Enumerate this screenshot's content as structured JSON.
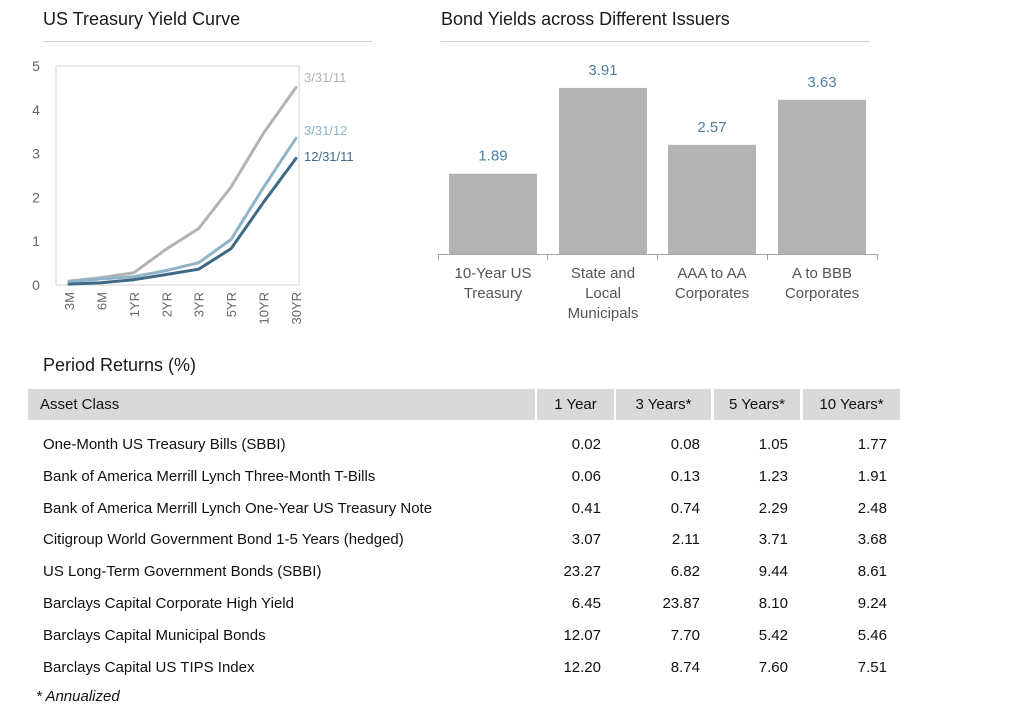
{
  "yield_curve": {
    "title": "US Treasury Yield Curve",
    "colors": {
      "3/31/11": "#b3b3b3",
      "3/31/12": "#8fb4c9",
      "12/31/11": "#3f6a85"
    }
  },
  "bond_yields": {
    "title": "Bond Yields across Different Issuers",
    "bar_color": "#b3b3b3",
    "label_color": "#4f7fa0"
  },
  "chart_data": [
    {
      "type": "line",
      "title": "US Treasury Yield Curve",
      "xlabel": "",
      "ylabel": "",
      "x": [
        "3M",
        "6M",
        "1YR",
        "2YR",
        "3YR",
        "5YR",
        "10YR",
        "30YR"
      ],
      "ylim": [
        0,
        5
      ],
      "yticks": [
        "0",
        "1",
        "2",
        "3",
        "4",
        "5"
      ],
      "grid": false,
      "series": [
        {
          "name": "3/31/11",
          "values": [
            0.09,
            0.17,
            0.28,
            0.82,
            1.29,
            2.24,
            3.47,
            4.51
          ]
        },
        {
          "name": "3/31/12",
          "values": [
            0.08,
            0.14,
            0.19,
            0.33,
            0.51,
            1.04,
            2.23,
            3.35
          ]
        },
        {
          "name": "12/31/11",
          "values": [
            0.02,
            0.05,
            0.12,
            0.24,
            0.36,
            0.83,
            1.89,
            2.89
          ]
        }
      ]
    },
    {
      "type": "bar",
      "title": "Bond Yields across Different Issuers",
      "xlabel": "",
      "ylabel": "",
      "categories": [
        [
          "10-Year US",
          "Treasury"
        ],
        [
          "State and",
          "Local",
          "Municipals"
        ],
        [
          "AAA to AA",
          "Corporates"
        ],
        [
          "A to BBB",
          "Corporates"
        ]
      ],
      "values": [
        1.89,
        3.91,
        2.57,
        3.63
      ],
      "labels": [
        "1.89",
        "3.91",
        "2.57",
        "3.63"
      ],
      "ylim": [
        0,
        4.45
      ]
    },
    {
      "type": "table",
      "title": "Period Returns (%)",
      "columns": [
        "Asset Class",
        "1 Year",
        "3 Years*",
        "5 Years*",
        "10 Years*"
      ],
      "rows": [
        [
          "One-Month US Treasury Bills (SBBI)",
          "0.02",
          "0.08",
          "1.05",
          "1.77"
        ],
        [
          "Bank of America Merrill Lynch Three-Month T-Bills",
          "0.06",
          "0.13",
          "1.23",
          "1.91"
        ],
        [
          "Bank of America Merrill Lynch One-Year US Treasury Note",
          "0.41",
          "0.74",
          "2.29",
          "2.48"
        ],
        [
          "Citigroup World Government Bond 1-5 Years (hedged)",
          "3.07",
          "2.11",
          "3.71",
          "3.68"
        ],
        [
          "US Long-Term Government Bonds (SBBI)",
          "23.27",
          "6.82",
          "9.44",
          "8.61"
        ],
        [
          "Barclays Capital Corporate High Yield",
          "6.45",
          "23.87",
          "8.10",
          "9.24"
        ],
        [
          "Barclays Capital Municipal Bonds",
          "12.07",
          "7.70",
          "5.42",
          "5.46"
        ],
        [
          "Barclays Capital US TIPS Index",
          "12.20",
          "8.74",
          "7.60",
          "7.51"
        ]
      ],
      "footnote": "* Annualized"
    }
  ]
}
